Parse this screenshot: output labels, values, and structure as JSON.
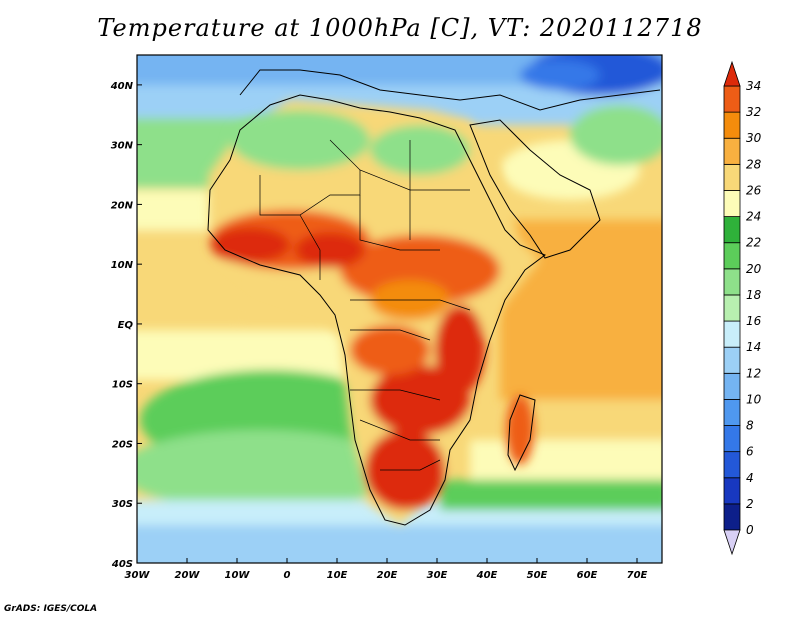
{
  "title": "Temperature at 1000hPa [C], VT: 2020112718",
  "credit": "GrADS: IGES/COLA",
  "map": {
    "variable": "Temperature at 1000hPa",
    "units": "C",
    "valid_time": "2020112718",
    "extent": {
      "lon": [
        -30,
        75
      ],
      "lat": [
        -40,
        45
      ]
    },
    "lat_ticks": [
      {
        "value": 40,
        "label": "40N"
      },
      {
        "value": 30,
        "label": "30N"
      },
      {
        "value": 20,
        "label": "20N"
      },
      {
        "value": 10,
        "label": "10N"
      },
      {
        "value": 0,
        "label": "EQ"
      },
      {
        "value": -10,
        "label": "10S"
      },
      {
        "value": -20,
        "label": "20S"
      },
      {
        "value": -30,
        "label": "30S"
      },
      {
        "value": -40,
        "label": "40S"
      }
    ],
    "lon_ticks": [
      {
        "value": -30,
        "label": "30W"
      },
      {
        "value": -20,
        "label": "20W"
      },
      {
        "value": -10,
        "label": "10W"
      },
      {
        "value": 0,
        "label": "0"
      },
      {
        "value": 10,
        "label": "10E"
      },
      {
        "value": 20,
        "label": "20E"
      },
      {
        "value": 30,
        "label": "30E"
      },
      {
        "value": 40,
        "label": "40E"
      },
      {
        "value": 50,
        "label": "50E"
      },
      {
        "value": 60,
        "label": "60E"
      },
      {
        "value": 70,
        "label": "70E"
      }
    ]
  },
  "colorbar": {
    "levels": [
      0,
      2,
      4,
      6,
      8,
      10,
      12,
      14,
      16,
      18,
      20,
      22,
      24,
      26,
      28,
      30,
      32,
      34
    ],
    "colors": [
      "#d8d0f5",
      "#0d1f8a",
      "#1838c0",
      "#2358d8",
      "#3478e8",
      "#4f98ef",
      "#74b4f2",
      "#9cd0f6",
      "#c8eefa",
      "#b8f0b0",
      "#8ee08a",
      "#5ccd5a",
      "#2fb13a",
      "#fdfcb8",
      "#f8d878",
      "#f8b040",
      "#f48c0c",
      "#ee5d16",
      "#dd2a0a"
    ]
  },
  "legend_palette": {
    "ocean_cold": "#74b4f2",
    "ocean_mid": "#fdfcb8",
    "ocean_warm": "#f8b040",
    "land_hot": "#dd2a0a",
    "land_warm": "#f48c0c",
    "land_mild": "#8ee08a",
    "border": "#000000"
  }
}
